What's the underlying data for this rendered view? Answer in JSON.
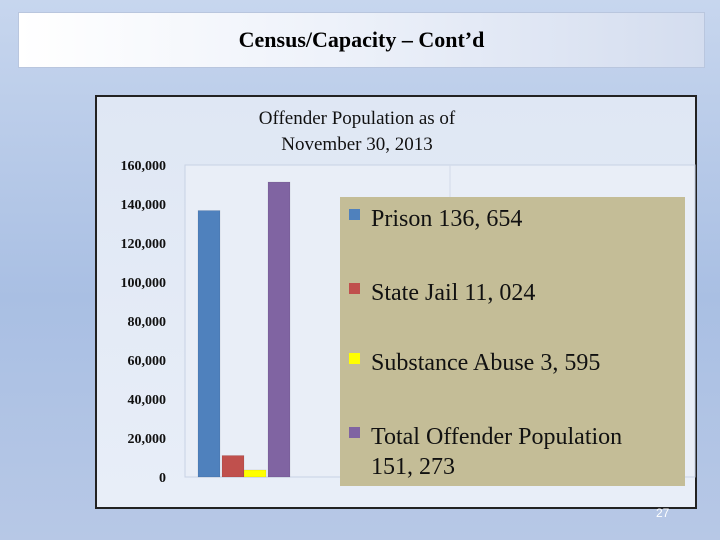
{
  "slide": {
    "title": "Census/Capacity – Cont’d",
    "page_number": "27"
  },
  "chart_data": {
    "type": "bar",
    "title": "Offender Population as of\nNovember 30, 2013",
    "title_lines": [
      "Offender Population as of",
      "November 30, 2013"
    ],
    "xlabel": "",
    "ylabel": "",
    "ylim": [
      0,
      160000
    ],
    "yticks": [
      "0",
      "20,000",
      "40,000",
      "60,000",
      "80,000",
      "100,000",
      "120,000",
      "140,000",
      "160,000"
    ],
    "grid": false,
    "legend_position": "right",
    "series": [
      {
        "name": "Prison",
        "value": 136654,
        "color": "#4f81bd",
        "legend_label": "Prison 136, 654"
      },
      {
        "name": "State Jail",
        "value": 11024,
        "color": "#c0504d",
        "legend_label": "State Jail 11, 024"
      },
      {
        "name": "Substance Abuse",
        "value": 3595,
        "color": "#ffff00",
        "legend_label": "Substance Abuse 3, 595"
      },
      {
        "name": "Total Offender Population",
        "value": 151273,
        "color": "#8064a2",
        "legend_label": "Total Offender Population 151, 273",
        "legend_lines": [
          "Total Offender Population",
          "151, 273"
        ]
      }
    ]
  }
}
